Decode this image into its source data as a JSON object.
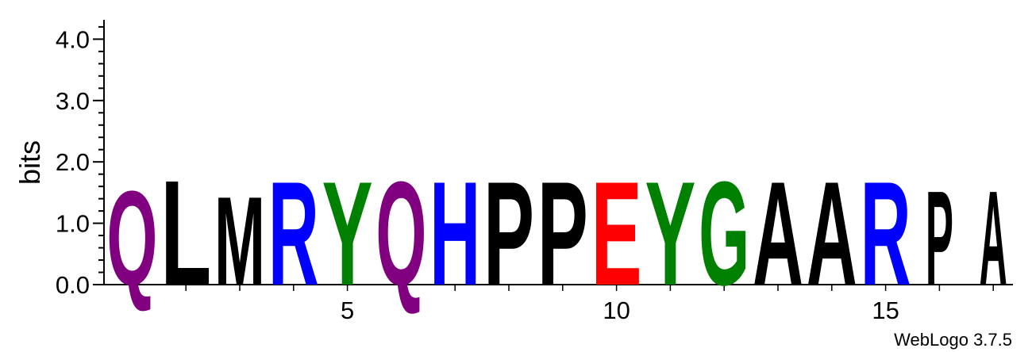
{
  "chart_data": {
    "type": "sequence-logo",
    "ylabel": "bits",
    "ylim": [
      0,
      4.32
    ],
    "y_ticks": [
      "0.0",
      "1.0",
      "2.0",
      "3.0",
      "4.0"
    ],
    "x_ticks": [
      "5",
      "10",
      "15"
    ],
    "x_tick_values": [
      5,
      10,
      15
    ],
    "positions": [
      {
        "pos": 1,
        "letter": "Q",
        "bits": 1.6,
        "color": "#800080"
      },
      {
        "pos": 2,
        "letter": "L",
        "bits": 1.78,
        "color": "#000000"
      },
      {
        "pos": 3,
        "letter": "M",
        "bits": 1.5,
        "color": "#000000"
      },
      {
        "pos": 4,
        "letter": "R",
        "bits": 1.76,
        "color": "#0000ff"
      },
      {
        "pos": 5,
        "letter": "Y",
        "bits": 1.76,
        "color": "#008000"
      },
      {
        "pos": 6,
        "letter": "Q",
        "bits": 1.76,
        "color": "#800080"
      },
      {
        "pos": 7,
        "letter": "H",
        "bits": 1.76,
        "color": "#0000ff"
      },
      {
        "pos": 8,
        "letter": "P",
        "bits": 1.76,
        "color": "#000000"
      },
      {
        "pos": 9,
        "letter": "P",
        "bits": 1.76,
        "color": "#000000"
      },
      {
        "pos": 10,
        "letter": "E",
        "bits": 1.76,
        "color": "#ff0000"
      },
      {
        "pos": 11,
        "letter": "Y",
        "bits": 1.76,
        "color": "#008000"
      },
      {
        "pos": 12,
        "letter": "G",
        "bits": 1.76,
        "color": "#008000"
      },
      {
        "pos": 13,
        "letter": "A",
        "bits": 1.76,
        "color": "#000000"
      },
      {
        "pos": 14,
        "letter": "A",
        "bits": 1.76,
        "color": "#000000"
      },
      {
        "pos": 15,
        "letter": "R",
        "bits": 1.76,
        "color": "#0000ff"
      },
      {
        "pos": 16,
        "letter": "P",
        "bits": 1.6,
        "color": "#000000"
      },
      {
        "pos": 17,
        "letter": "A",
        "bits": 1.6,
        "color": "#000000"
      }
    ]
  },
  "footer": {
    "credit": "WebLogo 3.7.5"
  }
}
